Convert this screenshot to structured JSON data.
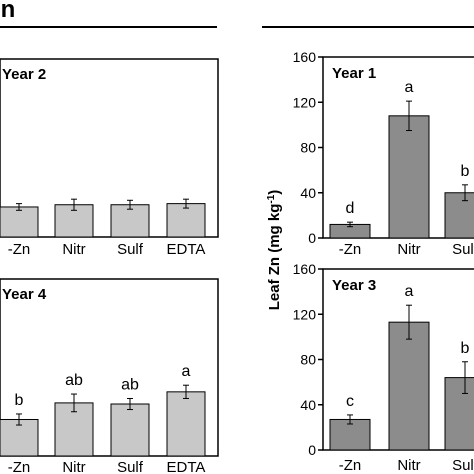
{
  "header": {
    "left_title_fragment": "on"
  },
  "chart_data": [
    {
      "type": "bar",
      "panel_label": "Year 2",
      "categories": [
        "-Zn",
        "Nitr",
        "Sulf",
        "EDTA"
      ],
      "values": [
        27,
        29,
        29,
        30
      ],
      "errors": [
        3,
        5,
        4,
        4
      ],
      "letters": [
        "",
        "",
        "",
        ""
      ],
      "ylim": [
        0,
        160
      ],
      "bar_color": "#c8c8c8"
    },
    {
      "type": "bar",
      "panel_label": "Year 4",
      "categories": [
        "-Zn",
        "Nitr",
        "Sulf",
        "EDTA"
      ],
      "values": [
        33,
        48,
        47,
        58
      ],
      "errors": [
        5,
        8,
        5,
        6
      ],
      "letters": [
        "b",
        "ab",
        "ab",
        "a"
      ],
      "ylim": [
        0,
        160
      ],
      "bar_color": "#c8c8c8"
    },
    {
      "type": "bar",
      "panel_label": "Year 1",
      "categories": [
        "-Zn",
        "Nitr",
        "Sulf"
      ],
      "values": [
        12,
        108,
        40
      ],
      "errors": [
        2,
        13,
        7
      ],
      "letters": [
        "d",
        "a",
        "b"
      ],
      "ylabel": "Leaf Zn (mg kg-1)",
      "yticks": [
        "0",
        "40",
        "80",
        "120",
        "160"
      ],
      "ylim": [
        0,
        160
      ],
      "bar_color": "#8c8c8c"
    },
    {
      "type": "bar",
      "panel_label": "Year 3",
      "categories": [
        "-Zn",
        "Nitr",
        "Sulf"
      ],
      "values": [
        27,
        113,
        64
      ],
      "errors": [
        4,
        15,
        14
      ],
      "letters": [
        "c",
        "a",
        "b"
      ],
      "ylabel": "Leaf Zn (mg kg-1)",
      "yticks": [
        "0",
        "40",
        "80",
        "120",
        "160"
      ],
      "ylim": [
        0,
        160
      ],
      "bar_color": "#8c8c8c"
    }
  ]
}
